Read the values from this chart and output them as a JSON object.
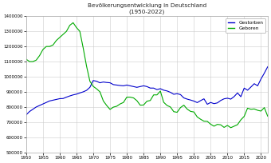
{
  "title": "Bevölkerungsentwicklung in Deutschland",
  "subtitle": "(1950-2022)",
  "legend_gestorben": "Gestorben",
  "legend_geboren": "Geboren",
  "line_color_gestorben": "#0000cc",
  "line_color_geboren": "#00aa00",
  "background_color": "#ffffff",
  "grid_color": "#cccccc",
  "ylim": [
    500000,
    1400000
  ],
  "xlim": [
    1950,
    2022
  ],
  "yticks": [
    500000,
    600000,
    700000,
    800000,
    900000,
    1000000,
    1100000,
    1200000,
    1300000,
    1400000
  ],
  "ytick_labels": [
    "500000",
    "600000",
    "700000",
    "800000",
    "900000",
    "1000000",
    "1100000",
    "1200000",
    "1300000",
    "1400000"
  ],
  "xticks": [
    1950,
    1955,
    1960,
    1965,
    1970,
    1975,
    1980,
    1985,
    1990,
    1995,
    2000,
    2005,
    2010,
    2015,
    2020
  ],
  "geboren": {
    "years": [
      1950,
      1951,
      1952,
      1953,
      1954,
      1955,
      1956,
      1957,
      1958,
      1959,
      1960,
      1961,
      1962,
      1963,
      1964,
      1965,
      1966,
      1967,
      1968,
      1969,
      1970,
      1971,
      1972,
      1973,
      1974,
      1975,
      1976,
      1977,
      1978,
      1979,
      1980,
      1981,
      1982,
      1983,
      1984,
      1985,
      1986,
      1987,
      1988,
      1989,
      1990,
      1991,
      1992,
      1993,
      1994,
      1995,
      1996,
      1997,
      1998,
      1999,
      2000,
      2001,
      2002,
      2003,
      2004,
      2005,
      2006,
      2007,
      2008,
      2009,
      2010,
      2011,
      2012,
      2013,
      2014,
      2015,
      2016,
      2017,
      2018,
      2019,
      2020,
      2021,
      2022
    ],
    "values": [
      1116000,
      1100000,
      1100000,
      1110000,
      1140000,
      1180000,
      1200000,
      1200000,
      1210000,
      1240000,
      1260000,
      1280000,
      1300000,
      1340000,
      1357304,
      1325000,
      1300000,
      1190000,
      1070000,
      970000,
      936000,
      920000,
      900000,
      840000,
      810000,
      784000,
      799000,
      805000,
      820000,
      830000,
      865000,
      865000,
      860000,
      842000,
      812000,
      813000,
      838000,
      843000,
      880000,
      880000,
      905000,
      831000,
      810000,
      800000,
      769000,
      765000,
      796000,
      812000,
      786000,
      771000,
      767000,
      734000,
      719000,
      706000,
      705000,
      686000,
      673000,
      685000,
      682000,
      665000,
      678000,
      663000,
      673000,
      683000,
      715000,
      738000,
      792000,
      785000,
      787000,
      778000,
      773000,
      796000,
      739000
    ]
  },
  "gestorben": {
    "years": [
      1950,
      1951,
      1952,
      1953,
      1954,
      1955,
      1956,
      1957,
      1958,
      1959,
      1960,
      1961,
      1962,
      1963,
      1964,
      1965,
      1966,
      1967,
      1968,
      1969,
      1970,
      1971,
      1972,
      1973,
      1974,
      1975,
      1976,
      1977,
      1978,
      1979,
      1980,
      1981,
      1982,
      1983,
      1984,
      1985,
      1986,
      1987,
      1988,
      1989,
      1990,
      1991,
      1992,
      1993,
      1994,
      1995,
      1996,
      1997,
      1998,
      1999,
      2000,
      2001,
      2002,
      2003,
      2004,
      2005,
      2006,
      2007,
      2008,
      2009,
      2010,
      2011,
      2012,
      2013,
      2014,
      2015,
      2016,
      2017,
      2018,
      2019,
      2020,
      2021,
      2022
    ],
    "values": [
      748000,
      770000,
      785000,
      800000,
      810000,
      820000,
      830000,
      840000,
      845000,
      850000,
      855000,
      856000,
      865000,
      873000,
      880000,
      885000,
      893000,
      900000,
      910000,
      930000,
      975000,
      970000,
      960000,
      965000,
      962000,
      960000,
      948000,
      945000,
      942000,
      940000,
      945000,
      940000,
      935000,
      930000,
      935000,
      940000,
      935000,
      925000,
      925000,
      915000,
      921000,
      911000,
      906000,
      897000,
      884000,
      888000,
      882000,
      860000,
      852000,
      846000,
      839000,
      829000,
      842000,
      854000,
      818000,
      830000,
      822000,
      827000,
      843000,
      854000,
      858000,
      852000,
      869000,
      893000,
      868000,
      925000,
      911000,
      932000,
      954000,
      940000,
      985000,
      1023718,
      1066000
    ]
  }
}
